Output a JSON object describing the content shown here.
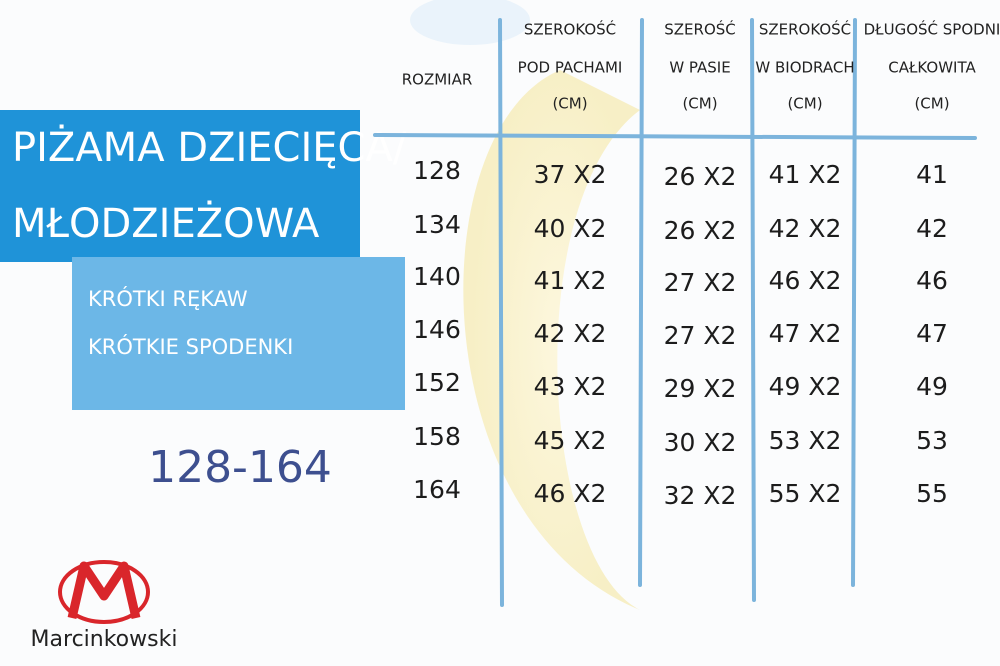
{
  "title": {
    "lines": [
      "PIŻAMA DZIECIĘCA/",
      "MŁODZIEŻOWA"
    ]
  },
  "subtitle": {
    "lines": [
      "KRÓTKI RĘKAW",
      "KRÓTKIE SPODENKI"
    ]
  },
  "size_range": "128-164",
  "brand": "Marcinkowski",
  "table": {
    "headers": [
      [
        "ROZMIAR"
      ],
      [
        "SZEROKOŚĆ",
        "POD PACHAMI",
        "(CM)"
      ],
      [
        "SZEROŚĆ",
        "W PASIE",
        "(CM)"
      ],
      [
        "SZEROKOŚĆ",
        "W BIODRACH",
        "(CM)"
      ],
      [
        "DŁUGOŚĆ SPODNI",
        "CAŁKOWITA",
        "(CM)"
      ]
    ],
    "rows": [
      [
        "128",
        "37 X2",
        "26 X2",
        "41 X2",
        "41"
      ],
      [
        "134",
        "40 X2",
        "26 X2",
        "42 X2",
        "42"
      ],
      [
        "140",
        "41 X2",
        "27 X2",
        "46 X2",
        "46"
      ],
      [
        "146",
        "42 X2",
        "27 X2",
        "47 X2",
        "47"
      ],
      [
        "152",
        "43 X2",
        "29 X2",
        "49 X2",
        "49"
      ],
      [
        "158",
        "45 X2",
        "30 X2",
        "53 X2",
        "53"
      ],
      [
        "164",
        "46 X2",
        "32 X2",
        "55 X2",
        "55"
      ]
    ]
  }
}
